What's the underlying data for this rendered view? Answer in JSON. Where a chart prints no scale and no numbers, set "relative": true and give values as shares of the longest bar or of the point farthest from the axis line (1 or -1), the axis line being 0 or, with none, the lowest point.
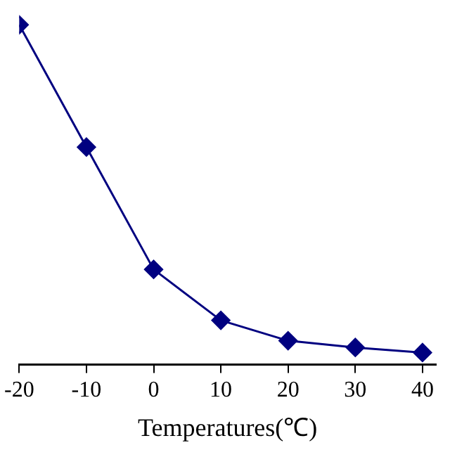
{
  "chart_data": {
    "type": "line",
    "xlabel": "Temperatures(℃)",
    "x": [
      -20,
      -10,
      0,
      10,
      20,
      30,
      40
    ],
    "series": [
      {
        "color": "#000080",
        "values": [
          1,
          0.64,
          0.28,
          0.13,
          0.07,
          0.05,
          0.035
        ]
      }
    ],
    "relative": true,
    "xlim": [
      -20,
      42
    ],
    "xticks": [
      -20,
      -10,
      0,
      10,
      20,
      30,
      40
    ],
    "marker": "diamond",
    "line_style": "solid",
    "grid": false,
    "legend": false
  }
}
